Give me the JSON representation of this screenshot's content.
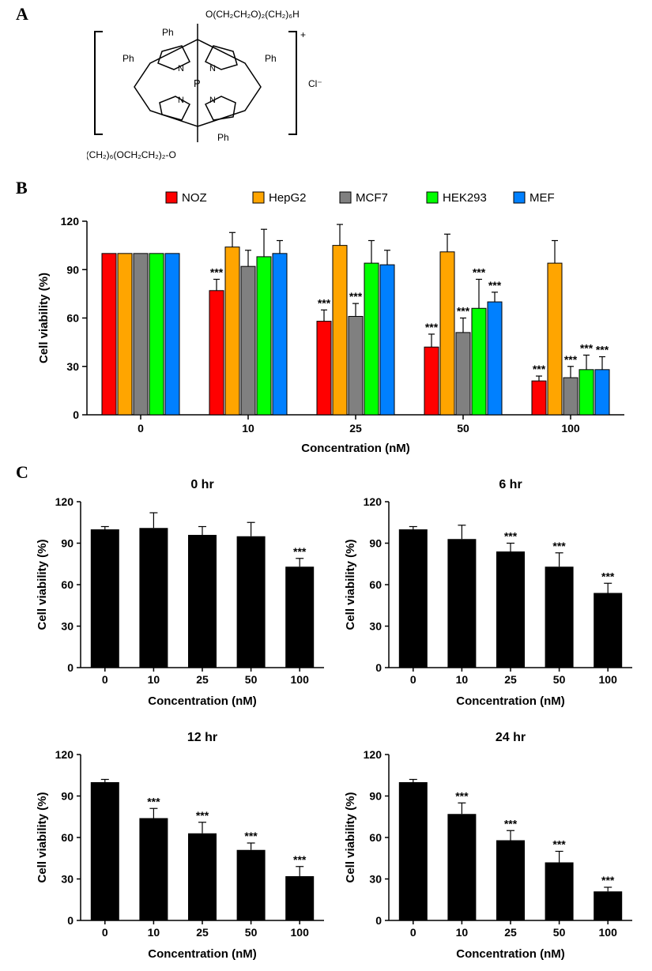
{
  "panelLabels": {
    "A": "A",
    "B": "B",
    "C": "C"
  },
  "chem": {
    "top": "O(CH₂CH₂O)₂(CH₂)₆H",
    "bottom": "H(CH₂)₆(OCH₂CH₂)₂-O",
    "ph": "Ph",
    "plus": "+",
    "cl": "Cl⁻"
  },
  "panelB": {
    "type": "grouped-bar",
    "ylabel": "Cell viability (%)",
    "xlabel": "Concentration (nM)",
    "ylim": [
      0,
      120
    ],
    "ytick_step": 30,
    "categories": [
      "0",
      "10",
      "25",
      "50",
      "100"
    ],
    "series": [
      {
        "name": "NOZ",
        "color": "#ff0000",
        "values": [
          100,
          77,
          58,
          42,
          21
        ],
        "err": [
          0,
          7,
          7,
          8,
          3
        ],
        "sig": [
          null,
          "***",
          "***",
          "***",
          "***"
        ]
      },
      {
        "name": "HepG2",
        "color": "#ffa500",
        "values": [
          100,
          104,
          105,
          101,
          94
        ],
        "err": [
          0,
          9,
          13,
          11,
          14
        ],
        "sig": [
          null,
          null,
          null,
          null,
          null
        ]
      },
      {
        "name": "MCF7",
        "color": "#808080",
        "values": [
          100,
          92,
          61,
          51,
          23
        ],
        "err": [
          0,
          10,
          8,
          9,
          7
        ],
        "sig": [
          null,
          null,
          "***",
          "***",
          "***"
        ]
      },
      {
        "name": "HEK293",
        "color": "#00ff00",
        "values": [
          100,
          98,
          94,
          66,
          28
        ],
        "err": [
          0,
          17,
          14,
          18,
          9
        ],
        "sig": [
          null,
          null,
          null,
          "***",
          "***"
        ]
      },
      {
        "name": "MEF",
        "color": "#0080ff",
        "values": [
          100,
          100,
          93,
          70,
          28
        ],
        "err": [
          0,
          8,
          9,
          6,
          8
        ],
        "sig": [
          null,
          null,
          null,
          "***",
          "***"
        ]
      }
    ],
    "bar_stroke": "#000000",
    "background": "#ffffff"
  },
  "panelC": {
    "type": "bar-grid",
    "ylabel": "Cell viability (%)",
    "xlabel": "Concentration (nM)",
    "ylim": [
      0,
      120
    ],
    "ytick_step": 30,
    "categories": [
      "0",
      "10",
      "25",
      "50",
      "100"
    ],
    "bar_color": "#000000",
    "background": "#ffffff",
    "subplots": [
      {
        "title": "0 hr",
        "values": [
          100,
          101,
          96,
          95,
          73
        ],
        "err": [
          2,
          11,
          6,
          10,
          6
        ],
        "sig": [
          null,
          null,
          null,
          null,
          "***"
        ]
      },
      {
        "title": "6 hr",
        "values": [
          100,
          93,
          84,
          73,
          54
        ],
        "err": [
          2,
          10,
          6,
          10,
          7
        ],
        "sig": [
          null,
          null,
          "***",
          "***",
          "***"
        ]
      },
      {
        "title": "12 hr",
        "values": [
          100,
          74,
          63,
          51,
          32
        ],
        "err": [
          2,
          7,
          8,
          5,
          7
        ],
        "sig": [
          null,
          "***",
          "***",
          "***",
          "***"
        ]
      },
      {
        "title": "24 hr",
        "values": [
          100,
          77,
          58,
          42,
          21
        ],
        "err": [
          2,
          8,
          7,
          8,
          3
        ],
        "sig": [
          null,
          "***",
          "***",
          "***",
          "***"
        ]
      }
    ]
  }
}
